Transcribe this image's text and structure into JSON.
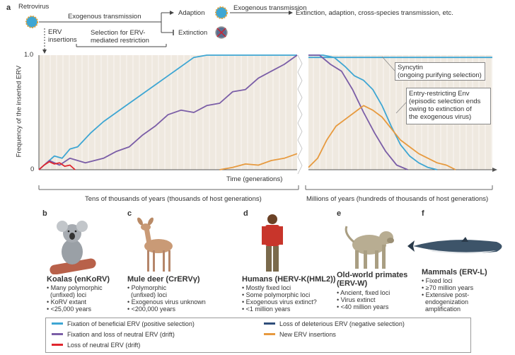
{
  "panel_a": {
    "letter": "a",
    "retrovirus": "Retrovirus",
    "exogenous_transmission": "Exogenous transmission",
    "adaption": "Adaption",
    "extinction": "Extinction",
    "exogenous_transmission_2": "Exogenous transmission",
    "outcomes": "Extinction, adaption, cross-species transmission, etc.",
    "erv_insertions_1": "ERV",
    "erv_insertions_2": "insertions",
    "selection_1": "Selection for ERV-",
    "selection_2": "mediated restriction",
    "y_axis_label": "Frequency of the inserted ERV",
    "y_tick_top": "1.0",
    "y_tick_bottom": "0",
    "x_axis_label": "Time (generations)",
    "annot_syncytin_1": "Syncytin",
    "annot_syncytin_2": "(ongoing purifying selection)",
    "annot_env_1": "Entry-restricting Env",
    "annot_env_2": "(episodic selection ends",
    "annot_env_3": "owing to extinction of",
    "annot_env_4": "the exogenous virus)",
    "span_left": "Tens of thousands of years (thousands of host generations)",
    "span_right": "Millions of years (hundreds of thousands of host generations)"
  },
  "chart_data": {
    "type": "line",
    "xlabel": "Time (generations)",
    "ylabel": "Frequency of the inserted ERV",
    "ylim": [
      0,
      1.0
    ],
    "series": [
      {
        "name": "Fixation of beneficial ERV (positive selection)",
        "color": "#3ea6d3",
        "segment": "left",
        "x": [
          0.0,
          0.03,
          0.06,
          0.09,
          0.12,
          0.15,
          0.2,
          0.25,
          0.3,
          0.35,
          0.4,
          0.45,
          0.5,
          0.55,
          0.6,
          0.65,
          0.7,
          0.75,
          0.8,
          0.85,
          0.9,
          0.95,
          1.0
        ],
        "y": [
          0.0,
          0.06,
          0.12,
          0.1,
          0.18,
          0.2,
          0.32,
          0.42,
          0.5,
          0.58,
          0.66,
          0.74,
          0.82,
          0.9,
          0.98,
          1.0,
          1.0,
          1.0,
          1.0,
          1.0,
          1.0,
          1.0,
          1.0
        ]
      },
      {
        "name": "Fixation and loss of neutral ERV (drift)",
        "color": "#7b5ea7",
        "segment": "left",
        "x": [
          0.0,
          0.04,
          0.08,
          0.12,
          0.18,
          0.25,
          0.3,
          0.35,
          0.4,
          0.45,
          0.5,
          0.55,
          0.6,
          0.65,
          0.7,
          0.75,
          0.8,
          0.85,
          0.9,
          0.95,
          1.0
        ],
        "y": [
          0.0,
          0.08,
          0.04,
          0.1,
          0.06,
          0.1,
          0.16,
          0.2,
          0.3,
          0.38,
          0.48,
          0.52,
          0.5,
          0.56,
          0.58,
          0.68,
          0.7,
          0.8,
          0.86,
          0.92,
          1.0
        ]
      },
      {
        "name": "Loss of neutral ERV (drift)",
        "color": "#e0262e",
        "segment": "left",
        "x": [
          0.0,
          0.02,
          0.04,
          0.06,
          0.08,
          0.1,
          0.12,
          0.14
        ],
        "y": [
          0.0,
          0.04,
          0.07,
          0.05,
          0.06,
          0.03,
          0.04,
          0.0
        ]
      },
      {
        "name": "New ERV insertions",
        "color": "#e79a3f",
        "segment": "left",
        "x": [
          0.7,
          0.75,
          0.8,
          0.85,
          0.9,
          0.95,
          1.0
        ],
        "y": [
          0.0,
          0.02,
          0.05,
          0.04,
          0.08,
          0.1,
          0.14
        ]
      },
      {
        "name": "Syncytin",
        "color": "#3ea6d3",
        "segment": "right",
        "x": [
          0.0,
          0.2,
          0.4,
          0.6,
          0.8,
          1.0
        ],
        "y": [
          0.98,
          0.98,
          0.98,
          0.98,
          0.98,
          0.98
        ]
      },
      {
        "name": "Entry-restricting Env",
        "color": "#3ea6d3",
        "segment": "right",
        "x": [
          0.0,
          0.08,
          0.14,
          0.2,
          0.25,
          0.3,
          0.35,
          0.4,
          0.45,
          0.5,
          0.55,
          0.6,
          0.65,
          0.7
        ],
        "y": [
          1.0,
          1.0,
          0.98,
          0.9,
          0.82,
          0.78,
          0.7,
          0.56,
          0.38,
          0.22,
          0.12,
          0.06,
          0.02,
          0.0
        ]
      },
      {
        "name": "Neutral ERV (drift)",
        "color": "#7b5ea7",
        "segment": "right",
        "x": [
          0.0,
          0.06,
          0.12,
          0.18,
          0.24,
          0.3,
          0.36,
          0.42,
          0.48,
          0.54
        ],
        "y": [
          1.0,
          1.0,
          0.92,
          0.86,
          0.7,
          0.5,
          0.32,
          0.16,
          0.04,
          0.0
        ]
      },
      {
        "name": "New ERV insertions",
        "color": "#e79a3f",
        "segment": "right",
        "x": [
          0.0,
          0.05,
          0.1,
          0.15,
          0.2,
          0.25,
          0.3,
          0.35,
          0.4,
          0.45,
          0.5,
          0.55,
          0.6,
          0.65,
          0.7,
          0.75,
          0.8
        ],
        "y": [
          0.02,
          0.1,
          0.26,
          0.38,
          0.44,
          0.5,
          0.56,
          0.52,
          0.46,
          0.36,
          0.26,
          0.2,
          0.14,
          0.1,
          0.06,
          0.04,
          0.0
        ]
      }
    ]
  },
  "panels": [
    {
      "letter": "b",
      "title": "Koalas (enKoRV)",
      "bullets": [
        "• Many polymorphic",
        "  (unfixed) loci",
        "• KoRV extant",
        "• <25,000 years"
      ]
    },
    {
      "letter": "c",
      "title": "Mule deer (CrERVγ)",
      "bullets": [
        "• Polymorphic",
        "  (unfixed) loci",
        "• Exogenous virus unknown",
        "• <200,000 years"
      ]
    },
    {
      "letter": "d",
      "title": "Humans (HERV-K(HML2))",
      "bullets": [
        "• Mostly fixed loci",
        "• Some polymorphic loci",
        "• Exogenous virus extinct?",
        "• <1 million years"
      ]
    },
    {
      "letter": "e",
      "title": "Old-world primates",
      "title2": "(ERV-W)",
      "bullets": [
        "• Ancient, fixed loci",
        "• Virus extinct",
        "• <40 million years"
      ]
    },
    {
      "letter": "f",
      "title": "Mammals (ERV-L)",
      "bullets": [
        "• Fixed loci",
        "• ≥70 million years",
        "• Extensive post-",
        "  endogenization",
        "  amplification"
      ]
    }
  ],
  "legend": [
    {
      "label": "Fixation of beneficial ERV (positive selection)",
      "color": "#3ea6d3"
    },
    {
      "label": "Fixation and loss of neutral ERV (drift)",
      "color": "#7b5ea7"
    },
    {
      "label": "Loss of neutral ERV (drift)",
      "color": "#e0262e"
    },
    {
      "label": "Loss of deleterious ERV (negative selection)",
      "color": "#2f4e7a"
    },
    {
      "label": "New ERV insertions",
      "color": "#e79a3f"
    }
  ]
}
